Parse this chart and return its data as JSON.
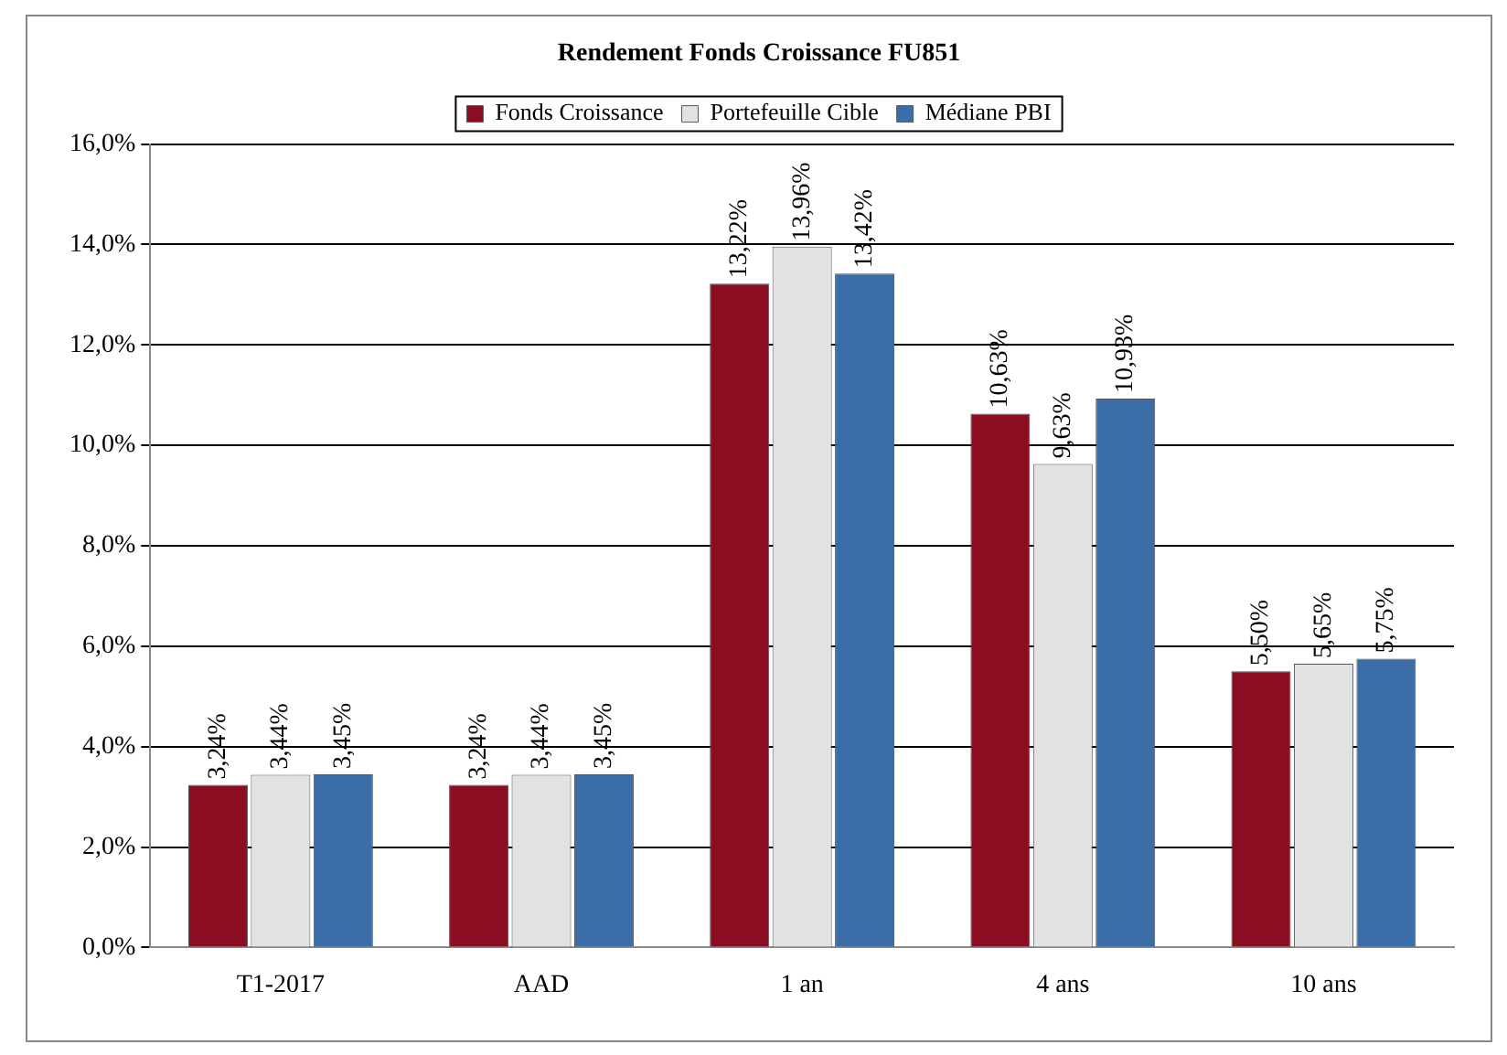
{
  "chart_data": {
    "type": "bar",
    "title": "Rendement Fonds Croissance FU851",
    "categories": [
      "T1-2017",
      "AAD",
      "1 an",
      "4 ans",
      "10 ans"
    ],
    "series": [
      {
        "name": "Fonds Croissance",
        "color": "#8b0d22",
        "values": [
          3.24,
          3.24,
          13.22,
          10.63,
          5.5
        ],
        "value_labels": [
          "3,24%",
          "3,24%",
          "13,22%",
          "10,63%",
          "5,50%"
        ]
      },
      {
        "name": "Portefeuille Cible",
        "color": "#e2e2e2",
        "values": [
          3.44,
          3.44,
          13.96,
          9.63,
          5.65
        ],
        "value_labels": [
          "3,44%",
          "3,44%",
          "13,96%",
          "9,63%",
          "5,65%"
        ]
      },
      {
        "name": "Médiane PBI",
        "color": "#3b6da6",
        "values": [
          3.45,
          3.45,
          13.42,
          10.93,
          5.75
        ],
        "value_labels": [
          "3,45%",
          "3,45%",
          "13,42%",
          "10,93%",
          "5,75%"
        ]
      }
    ],
    "ylim": [
      0,
      16
    ],
    "yticks": [
      {
        "value": 0,
        "label": "0,0%"
      },
      {
        "value": 2,
        "label": "2,0%"
      },
      {
        "value": 4,
        "label": "4,0%"
      },
      {
        "value": 6,
        "label": "6,0%"
      },
      {
        "value": 8,
        "label": "8,0%"
      },
      {
        "value": 10,
        "label": "10,0%"
      },
      {
        "value": 12,
        "label": "12,0%"
      },
      {
        "value": 14,
        "label": "14,0%"
      },
      {
        "value": 16,
        "label": "16,0%"
      }
    ],
    "grid": "y",
    "legend": "top"
  }
}
